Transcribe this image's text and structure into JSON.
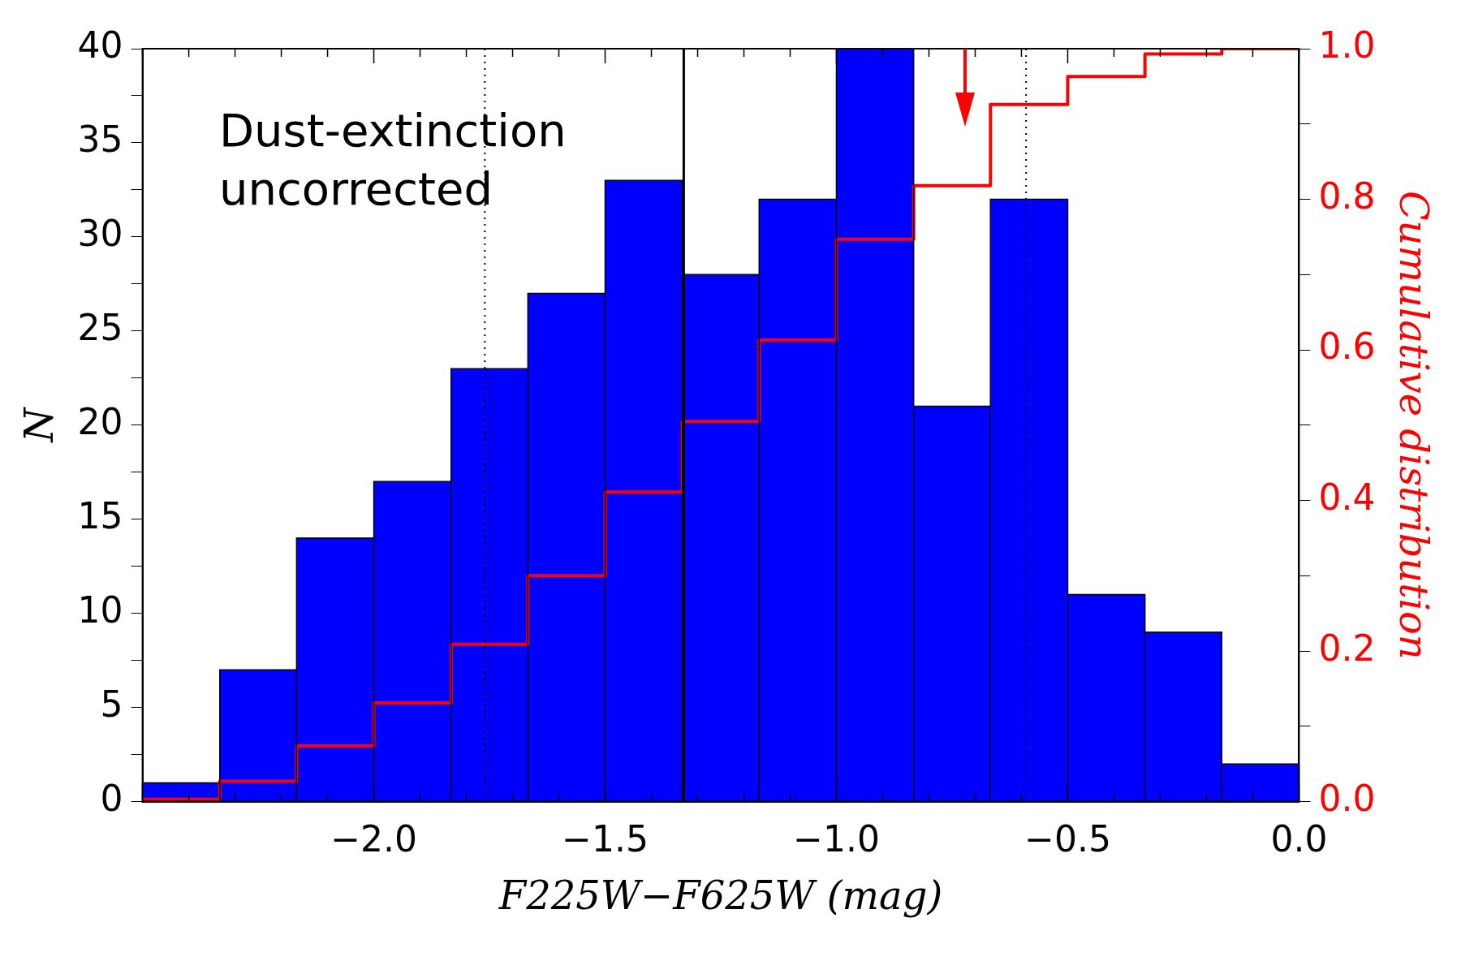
{
  "chart_data": {
    "type": "histogram",
    "xlabel": "F225W−F625W (mag)",
    "ylabel": "N",
    "y2label": "Cumulative distribution",
    "annotations": [
      "Dust-extinction uncorrected"
    ],
    "bins": [
      -2.5,
      -2.333,
      -2.167,
      -2.0,
      -1.833,
      -1.667,
      -1.5,
      -1.333,
      -1.167,
      -1.0,
      -0.833,
      -0.667,
      -0.5,
      -0.333,
      -0.167,
      0.0
    ],
    "values": [
      1,
      7,
      14,
      17,
      23,
      27,
      33,
      28,
      32,
      40,
      21,
      32,
      11,
      9,
      2
    ],
    "color": "#0000ff",
    "series": [
      {
        "type": "step",
        "axis": "y2",
        "color": "#ff0000",
        "x": [
          -2.5,
          -2.333,
          -2.167,
          -2.0,
          -1.833,
          -1.667,
          -1.5,
          -1.333,
          -1.167,
          -1.0,
          -0.833,
          -0.667,
          -0.5,
          -0.333,
          -0.167,
          0.0
        ],
        "values": [
          0.003,
          0.027,
          0.074,
          0.131,
          0.209,
          0.3,
          0.411,
          0.505,
          0.613,
          0.747,
          0.818,
          0.926,
          0.963,
          0.993,
          1.0,
          1.0
        ]
      }
    ],
    "ref_lines": [
      {
        "axis": "x",
        "value": -1.33,
        "color": "#000000",
        "line_style": "solid"
      },
      {
        "axis": "x",
        "value": -1.76,
        "color": "#000000",
        "line_style": "dotted"
      },
      {
        "axis": "x",
        "value": -0.59,
        "color": "#000000",
        "line_style": "dotted"
      }
    ],
    "xlim": [
      -2.5,
      0.0
    ],
    "xticks": [
      {
        "value": -2.5,
        "label": null
      },
      {
        "value": -2.4,
        "label": null
      },
      {
        "value": -2.3,
        "label": null
      },
      {
        "value": -2.2,
        "label": null
      },
      {
        "value": -2.1,
        "label": null
      },
      {
        "value": -2.0,
        "label": "−2.0"
      },
      {
        "value": -1.9,
        "label": null
      },
      {
        "value": -1.8,
        "label": null
      },
      {
        "value": -1.7,
        "label": null
      },
      {
        "value": -1.6,
        "label": null
      },
      {
        "value": -1.5,
        "label": "−1.5"
      },
      {
        "value": -1.4,
        "label": null
      },
      {
        "value": -1.3,
        "label": null
      },
      {
        "value": -1.2,
        "label": null
      },
      {
        "value": -1.1,
        "label": null
      },
      {
        "value": -1.0,
        "label": "−1.0"
      },
      {
        "value": -0.9,
        "label": null
      },
      {
        "value": -0.8,
        "label": null
      },
      {
        "value": -0.7,
        "label": null
      },
      {
        "value": -0.6,
        "label": null
      },
      {
        "value": -0.5,
        "label": "−0.5"
      },
      {
        "value": -0.4,
        "label": null
      },
      {
        "value": -0.3,
        "label": null
      },
      {
        "value": -0.2,
        "label": null
      },
      {
        "value": -0.1,
        "label": null
      },
      {
        "value": 0.0,
        "label": "0.0"
      }
    ],
    "ylim": [
      0,
      40
    ],
    "yticks": [
      0,
      {
        "value": 2.5,
        "label": null
      },
      5,
      {
        "value": 7.5,
        "label": null
      },
      10,
      {
        "value": 12.5,
        "label": null
      },
      15,
      {
        "value": 17.5,
        "label": null
      },
      20,
      {
        "value": 22.5,
        "label": null
      },
      25,
      {
        "value": 27.5,
        "label": null
      },
      30,
      {
        "value": 32.5,
        "label": null
      },
      35,
      {
        "value": 37.5,
        "label": null
      },
      40
    ],
    "y2lim": [
      0,
      1
    ],
    "y2ticks": [
      {
        "value": 0,
        "label": "0.0"
      },
      {
        "value": 0.1,
        "label": null
      },
      {
        "value": 0.2,
        "label": "0.2"
      },
      {
        "value": 0.3,
        "label": null
      },
      {
        "value": 0.4,
        "label": "0.4"
      },
      {
        "value": 0.5,
        "label": null
      },
      {
        "value": 0.6,
        "label": "0.6"
      },
      {
        "value": 0.7,
        "label": null
      },
      {
        "value": 0.8,
        "label": "0.8"
      },
      {
        "value": 0.9,
        "label": null
      },
      {
        "value": 1.0,
        "label": "1.0"
      }
    ],
    "grid": false,
    "legend": false
  }
}
